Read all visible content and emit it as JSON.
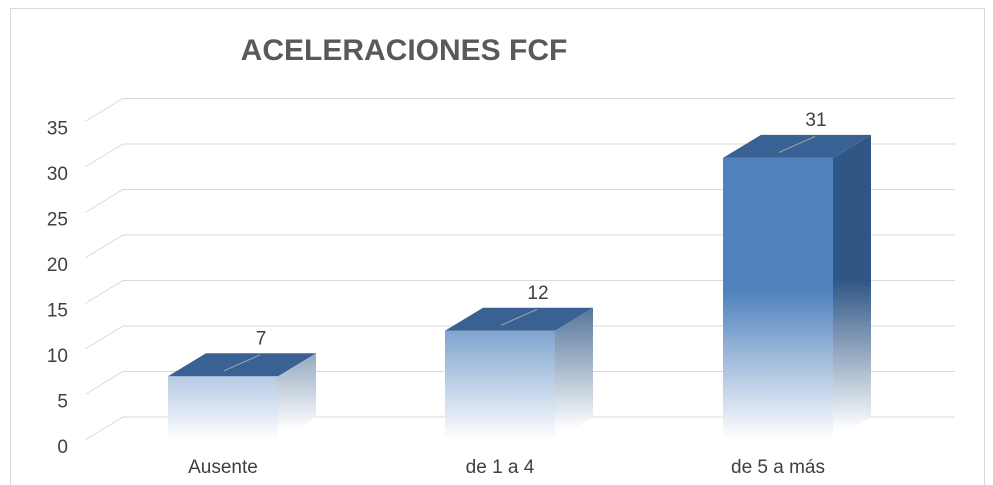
{
  "chart_data": {
    "type": "bar3d",
    "title": "ACELERACIONES FCF",
    "categories": [
      "Ausente",
      "de 1 a 4",
      "de 5 a más"
    ],
    "values": [
      7,
      12,
      31
    ],
    "color": "#4f81bd",
    "ylim": [
      0,
      35
    ],
    "yticks": [
      0,
      5,
      10,
      15,
      20,
      25,
      30,
      35
    ],
    "grid": true
  }
}
